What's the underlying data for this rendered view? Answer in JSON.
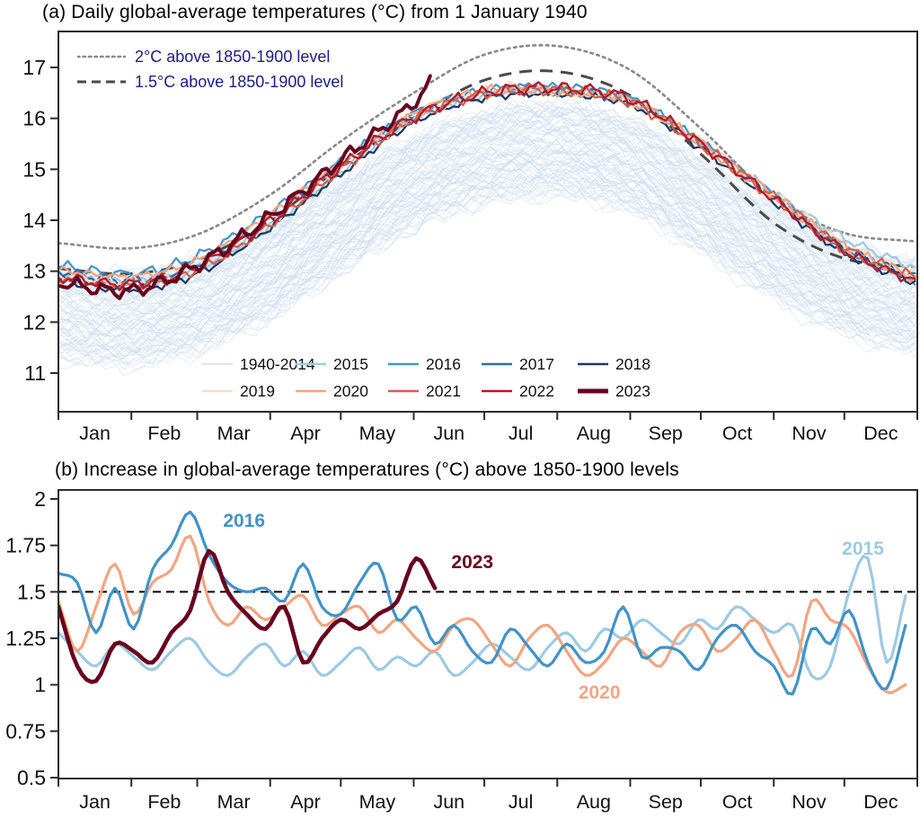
{
  "chart_data": [
    {
      "panel": "a",
      "type": "line",
      "title": "(a) Daily global-average temperatures (°C) from 1 January 1940",
      "ylim": [
        10.25,
        17.7
      ],
      "y_ticks": [
        11,
        12,
        13,
        14,
        15,
        16,
        17
      ],
      "months": [
        "Jan",
        "Feb",
        "Mar",
        "Apr",
        "May",
        "Jun",
        "Jul",
        "Aug",
        "Sep",
        "Oct",
        "Nov",
        "Dec"
      ],
      "month_boundary_days": [
        0,
        31,
        59,
        90,
        120,
        151,
        181,
        212,
        243,
        273,
        304,
        334,
        365
      ],
      "reference_lines": [
        {
          "name": "2°C above 1850-1900 level",
          "style": "dotted",
          "color": "#8a8a8a",
          "monthly": [
            13.55,
            13.45,
            13.72,
            14.5,
            15.55,
            16.5,
            17.25,
            17.42,
            16.95,
            15.8,
            14.45,
            13.75,
            13.58
          ]
        },
        {
          "name": "1.5°C above 1850-1900 level",
          "style": "dashed",
          "color": "#4a4a4a",
          "monthly": [
            13.05,
            12.95,
            13.22,
            14.0,
            15.05,
            16.0,
            16.75,
            16.92,
            16.45,
            15.3,
            13.95,
            13.25,
            13.08
          ]
        }
      ],
      "ref_legend_text_color": "#1c1c85",
      "band": {
        "name": "1940-2014",
        "color": "#cfe0ef",
        "years_count": 75,
        "half_spread": 0.9,
        "climatology_monthly": [
          12.2,
          12.08,
          12.35,
          13.0,
          13.9,
          14.75,
          15.25,
          15.4,
          15.1,
          14.3,
          13.4,
          12.7,
          12.3
        ]
      },
      "series": [
        {
          "name": "2015",
          "color": "#9fcae1",
          "monthly": [
            12.9,
            12.78,
            13.05,
            13.9,
            14.95,
            16.0,
            16.45,
            16.55,
            16.3,
            15.5,
            14.55,
            13.65,
            13.05
          ]
        },
        {
          "name": "2016",
          "color": "#4596c8",
          "monthly": [
            13.1,
            12.95,
            13.3,
            14.15,
            15.15,
            16.1,
            16.55,
            16.62,
            16.4,
            15.55,
            14.5,
            13.45,
            12.8
          ]
        },
        {
          "name": "2017",
          "color": "#2c6cad",
          "monthly": [
            13.0,
            12.82,
            13.15,
            14.05,
            15.05,
            16.05,
            16.5,
            16.55,
            16.35,
            15.5,
            14.45,
            13.45,
            12.88
          ]
        },
        {
          "name": "2018",
          "color": "#1d3a67",
          "monthly": [
            12.82,
            12.65,
            12.95,
            13.85,
            14.9,
            15.92,
            16.4,
            16.48,
            16.28,
            15.42,
            14.38,
            13.38,
            12.78
          ]
        },
        {
          "name": "2019",
          "color": "#fadbc8",
          "monthly": [
            12.92,
            12.8,
            13.1,
            14.0,
            15.05,
            16.05,
            16.52,
            16.58,
            16.35,
            15.52,
            14.5,
            13.52,
            12.92
          ]
        },
        {
          "name": "2020",
          "color": "#f4a582",
          "monthly": [
            13.02,
            12.9,
            13.22,
            14.12,
            15.12,
            16.08,
            16.55,
            16.52,
            16.35,
            15.5,
            14.48,
            13.48,
            12.85
          ]
        },
        {
          "name": "2021",
          "color": "#d35f4b",
          "monthly": [
            12.85,
            12.72,
            13.02,
            13.92,
            15.0,
            16.0,
            16.48,
            16.55,
            16.32,
            15.48,
            14.45,
            13.45,
            12.85
          ]
        },
        {
          "name": "2022",
          "color": "#b21a2c",
          "monthly": [
            12.88,
            12.75,
            13.08,
            13.98,
            15.05,
            16.02,
            16.5,
            16.6,
            16.38,
            15.5,
            14.42,
            13.4,
            12.78
          ]
        },
        {
          "name": "2023",
          "color": "#67001f",
          "width": 4,
          "anchor_days": [
            0,
            31,
            59,
            90,
            120,
            151,
            158
          ],
          "values": [
            12.78,
            12.62,
            13.12,
            14.08,
            15.18,
            16.3,
            16.7
          ]
        }
      ],
      "legend_rows": [
        [
          "1940-2014",
          "2015",
          "2016",
          "2017",
          "2018"
        ],
        [
          "2019",
          "2020",
          "2021",
          "2022",
          "2023"
        ]
      ]
    },
    {
      "panel": "b",
      "type": "line",
      "title": "(b) Increase in global-average temperatures (°C) above 1850-1900 levels",
      "ylim": [
        0.5,
        2.05
      ],
      "y_ticks": [
        2,
        1.75,
        1.5,
        1.25,
        1,
        0.75,
        0.5
      ],
      "months": [
        "Jan",
        "Feb",
        "Mar",
        "Apr",
        "May",
        "Jun",
        "Jul",
        "Aug",
        "Sep",
        "Oct",
        "Nov",
        "Dec"
      ],
      "month_boundary_days": [
        0,
        31,
        59,
        90,
        120,
        151,
        181,
        212,
        243,
        273,
        304,
        334,
        365
      ],
      "threshold": {
        "value": 1.5,
        "style": "dashed",
        "color": "#111111"
      },
      "sample_step_days": 8,
      "series": [
        {
          "name": "2015",
          "color": "#9ecae1",
          "values": [
            1.28,
            1.18,
            1.1,
            1.22,
            1.15,
            1.08,
            1.18,
            1.25,
            1.12,
            1.05,
            1.15,
            1.22,
            1.1,
            1.18,
            1.05,
            1.12,
            1.2,
            1.08,
            1.15,
            1.1,
            1.18,
            1.05,
            1.12,
            1.22,
            1.15,
            1.08,
            1.2,
            1.28,
            1.18,
            1.3,
            1.25,
            1.35,
            1.28,
            1.22,
            1.35,
            1.3,
            1.42,
            1.35,
            1.28,
            1.32,
            1.05,
            1.1,
            1.5,
            1.68,
            1.12,
            1.48
          ],
          "label": {
            "day": 333,
            "value": 1.73
          }
        },
        {
          "name": "2020",
          "color": "#f4a582",
          "values": [
            1.45,
            1.18,
            1.42,
            1.65,
            1.38,
            1.55,
            1.62,
            1.8,
            1.45,
            1.32,
            1.42,
            1.35,
            1.42,
            1.48,
            1.32,
            1.38,
            1.42,
            1.28,
            1.35,
            1.25,
            1.18,
            1.32,
            1.35,
            1.22,
            1.1,
            1.25,
            1.32,
            1.18,
            1.05,
            1.12,
            1.25,
            1.18,
            1.1,
            1.28,
            1.32,
            1.18,
            1.25,
            1.35,
            1.18,
            1.05,
            1.45,
            1.35,
            1.3,
            1.1,
            0.96,
            1.0
          ],
          "label": {
            "day": 221,
            "value": 0.955
          }
        },
        {
          "name": "2016",
          "color": "#4292c6",
          "values": [
            1.6,
            1.55,
            1.28,
            1.52,
            1.3,
            1.62,
            1.75,
            1.93,
            1.7,
            1.55,
            1.5,
            1.52,
            1.45,
            1.65,
            1.42,
            1.38,
            1.55,
            1.65,
            1.35,
            1.42,
            1.22,
            1.32,
            1.18,
            1.12,
            1.3,
            1.2,
            1.1,
            1.22,
            1.12,
            1.18,
            1.42,
            1.15,
            1.2,
            1.18,
            1.08,
            1.25,
            1.32,
            1.18,
            1.1,
            0.95,
            1.3,
            1.22,
            1.4,
            1.12,
            0.98,
            1.32
          ],
          "label": {
            "day": 70,
            "value": 1.88
          }
        },
        {
          "name": "2023",
          "color": "#67001f",
          "width": 4.6,
          "values": [
            1.42,
            1.1,
            1.02,
            1.22,
            1.18,
            1.12,
            1.28,
            1.4,
            1.72,
            1.5,
            1.38,
            1.3,
            1.42,
            1.12,
            1.25,
            1.35,
            1.3,
            1.38,
            1.45,
            1.68,
            1.52
          ],
          "label": {
            "day": 167,
            "value": 1.655
          }
        }
      ]
    }
  ]
}
